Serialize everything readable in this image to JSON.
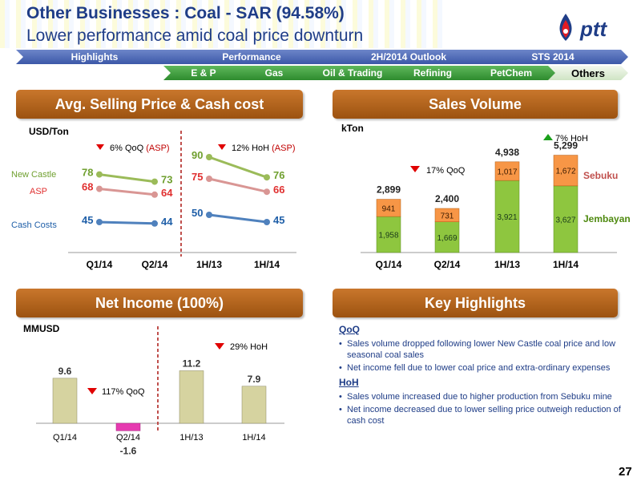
{
  "header": {
    "title": "Other Businesses : Coal - SAR (94.58%)",
    "subtitle": "Lower performance amid coal price downturn",
    "logo_text": "ptt"
  },
  "nav": {
    "top": [
      "Highlights",
      "Performance",
      "2H/2014 Outlook",
      "STS 2014"
    ],
    "sub": [
      "E & P",
      "Gas",
      "Oil & Trading",
      "Refining",
      "PetChem",
      "Others"
    ],
    "active": "Others"
  },
  "sections": {
    "asp": "Avg. Selling Price & Cash cost",
    "sales": "Sales Volume",
    "net": "Net Income (100%)",
    "key": "Key Highlights"
  },
  "colors": {
    "newcastle": "#9bbb59",
    "asp": "#d99694",
    "cashcost": "#4f81bd",
    "green_bar": "#8ec63f",
    "orange_bar": "#f79646",
    "red_arrow": "#e00000",
    "green_arrow": "#1ba01b",
    "ni_pos": "#d6d3a0",
    "ni_neg": "#e63ab0"
  },
  "chart_data": [
    {
      "type": "line",
      "unit_label": "USD/Ton",
      "categories": [
        "Q1/14",
        "Q2/14",
        "1H/13",
        "1H/14"
      ],
      "series": [
        {
          "name": "New Castle",
          "values": [
            78,
            73,
            90,
            76
          ]
        },
        {
          "name": "ASP",
          "values": [
            68,
            64,
            75,
            66
          ]
        },
        {
          "name": "Cash Costs",
          "values": [
            45,
            44,
            50,
            45
          ]
        }
      ],
      "annotations": [
        {
          "text": "6% QoQ",
          "highlight": "(ASP)",
          "direction": "down"
        },
        {
          "text": "12% HoH",
          "highlight": "(ASP)",
          "direction": "down"
        }
      ],
      "ylim": [
        35,
        95
      ]
    },
    {
      "type": "bar",
      "stacked": true,
      "unit_label": "kTon",
      "categories": [
        "Q1/14",
        "Q2/14",
        "1H/13",
        "1H/14"
      ],
      "series": [
        {
          "name": "Jembayan",
          "values": [
            1958,
            1669,
            3921,
            3627
          ]
        },
        {
          "name": "Sebuku",
          "values": [
            941,
            731,
            1017,
            1672
          ]
        }
      ],
      "value_labels": {
        "Jembayan": [
          "1,958",
          "1,669",
          "3,921",
          "3,627"
        ],
        "Sebuku": [
          "941",
          "731",
          "1,017",
          "1,672"
        ]
      },
      "totals": [
        "2,899",
        "2,400",
        "4,938",
        "5,299"
      ],
      "total_values": [
        2899,
        2400,
        4938,
        5299
      ],
      "annotations": [
        {
          "text": "17% QoQ",
          "direction": "down"
        },
        {
          "text": "7% HoH",
          "direction": "up"
        }
      ],
      "ylim": [
        0,
        6000
      ]
    },
    {
      "type": "bar",
      "unit_label": "MMUSD",
      "categories": [
        "Q1/14",
        "Q2/14",
        "1H/13",
        "1H/14"
      ],
      "values": [
        9.6,
        -1.6,
        11.2,
        7.9
      ],
      "value_labels": [
        "9.6",
        "-1.6",
        "11.2",
        "7.9"
      ],
      "annotations": [
        {
          "text": "117% QoQ",
          "direction": "down"
        },
        {
          "text": "29% HoH",
          "direction": "down"
        }
      ],
      "ylim": [
        -3,
        14
      ]
    }
  ],
  "key_highlights": {
    "qoq_title": "QoQ",
    "qoq": [
      "Sales volume dropped following lower New Castle coal price and low seasonal coal sales",
      "Net income fell due to lower coal price and extra-ordinary expenses"
    ],
    "hoh_title": "HoH",
    "hoh": [
      "Sales volume increased due to higher production from Sebuku mine",
      "Net income decreased due to lower selling price outweigh reduction of cash cost"
    ]
  },
  "page_number": "27"
}
